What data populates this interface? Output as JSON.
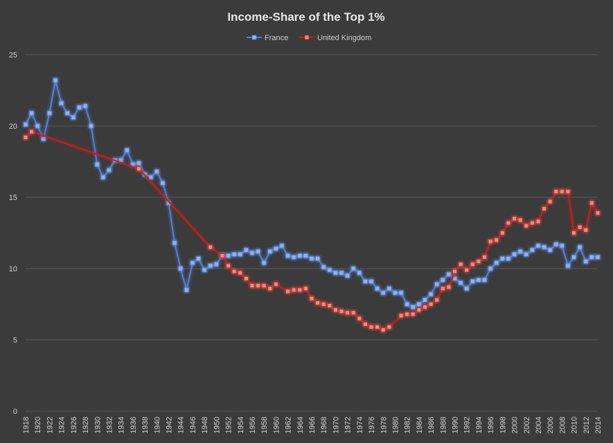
{
  "colors": {
    "background": "#3b3b3b",
    "grid": "#5a5a5a",
    "text": "#d0d0d0",
    "france": "#4f81d6",
    "france_marker": "#8fb2f0",
    "uk": "#c0201d",
    "uk_marker": "#f08a80"
  },
  "chart_data": {
    "type": "line",
    "title": "Income-Share of the Top 1%",
    "xlabel": "",
    "ylabel": "",
    "ylim": [
      0,
      25
    ],
    "yticks": [
      0,
      5,
      10,
      15,
      20,
      25
    ],
    "xlim": [
      1918,
      2014
    ],
    "xticks": [
      1918,
      1920,
      1922,
      1924,
      1926,
      1928,
      1930,
      1932,
      1934,
      1936,
      1938,
      1940,
      1942,
      1944,
      1946,
      1948,
      1950,
      1952,
      1954,
      1956,
      1958,
      1960,
      1962,
      1964,
      1966,
      1968,
      1970,
      1972,
      1974,
      1976,
      1978,
      1980,
      1982,
      1984,
      1986,
      1988,
      1990,
      1992,
      1994,
      1996,
      1998,
      2000,
      2002,
      2004,
      2006,
      2008,
      2010,
      2012,
      2014
    ],
    "grid": true,
    "legend_position": "top-center",
    "series": [
      {
        "name": "France",
        "color": "#4f81d6",
        "points": [
          [
            1918,
            20.1
          ],
          [
            1919,
            20.9
          ],
          [
            1920,
            20.0
          ],
          [
            1921,
            19.1
          ],
          [
            1922,
            20.9
          ],
          [
            1923,
            23.2
          ],
          [
            1924,
            21.6
          ],
          [
            1925,
            20.9
          ],
          [
            1926,
            20.6
          ],
          [
            1927,
            21.3
          ],
          [
            1928,
            21.4
          ],
          [
            1929,
            20.0
          ],
          [
            1930,
            17.3
          ],
          [
            1931,
            16.4
          ],
          [
            1932,
            16.9
          ],
          [
            1933,
            17.6
          ],
          [
            1934,
            17.6
          ],
          [
            1935,
            18.3
          ],
          [
            1936,
            17.3
          ],
          [
            1937,
            17.4
          ],
          [
            1938,
            16.6
          ],
          [
            1939,
            16.4
          ],
          [
            1940,
            16.8
          ],
          [
            1941,
            16.0
          ],
          [
            1942,
            14.6
          ],
          [
            1943,
            11.8
          ],
          [
            1944,
            10.0
          ],
          [
            1945,
            8.5
          ],
          [
            1946,
            10.4
          ],
          [
            1947,
            10.7
          ],
          [
            1948,
            9.9
          ],
          [
            1949,
            10.2
          ],
          [
            1950,
            10.3
          ],
          [
            1951,
            10.9
          ],
          [
            1952,
            10.9
          ],
          [
            1953,
            11.0
          ],
          [
            1954,
            11.0
          ],
          [
            1955,
            11.3
          ],
          [
            1956,
            11.1
          ],
          [
            1957,
            11.2
          ],
          [
            1958,
            10.4
          ],
          [
            1959,
            11.2
          ],
          [
            1960,
            11.4
          ],
          [
            1961,
            11.6
          ],
          [
            1962,
            10.9
          ],
          [
            1963,
            10.8
          ],
          [
            1964,
            10.9
          ],
          [
            1965,
            10.9
          ],
          [
            1966,
            10.7
          ],
          [
            1967,
            10.7
          ],
          [
            1968,
            10.1
          ],
          [
            1969,
            9.9
          ],
          [
            1970,
            9.7
          ],
          [
            1971,
            9.7
          ],
          [
            1972,
            9.5
          ],
          [
            1973,
            10.0
          ],
          [
            1974,
            9.7
          ],
          [
            1975,
            9.1
          ],
          [
            1976,
            9.1
          ],
          [
            1977,
            8.6
          ],
          [
            1978,
            8.3
          ],
          [
            1979,
            8.6
          ],
          [
            1980,
            8.3
          ],
          [
            1981,
            8.3
          ],
          [
            1982,
            7.5
          ],
          [
            1983,
            7.3
          ],
          [
            1984,
            7.5
          ],
          [
            1985,
            7.8
          ],
          [
            1986,
            8.2
          ],
          [
            1987,
            8.9
          ],
          [
            1988,
            9.2
          ],
          [
            1989,
            9.6
          ],
          [
            1990,
            9.3
          ],
          [
            1991,
            9.0
          ],
          [
            1992,
            8.6
          ],
          [
            1993,
            9.1
          ],
          [
            1994,
            9.2
          ],
          [
            1995,
            9.2
          ],
          [
            1996,
            10.0
          ],
          [
            1997,
            10.4
          ],
          [
            1998,
            10.7
          ],
          [
            1999,
            10.7
          ],
          [
            2000,
            11.0
          ],
          [
            2001,
            11.2
          ],
          [
            2002,
            11.0
          ],
          [
            2003,
            11.3
          ],
          [
            2004,
            11.6
          ],
          [
            2005,
            11.5
          ],
          [
            2006,
            11.3
          ],
          [
            2007,
            11.7
          ],
          [
            2008,
            11.6
          ],
          [
            2009,
            10.2
          ],
          [
            2010,
            10.8
          ],
          [
            2011,
            11.5
          ],
          [
            2012,
            10.5
          ],
          [
            2013,
            10.8
          ],
          [
            2014,
            10.8
          ]
        ]
      },
      {
        "name": "United Kingdom",
        "color": "#c0201d",
        "points": [
          [
            1918,
            19.2
          ],
          [
            1919,
            19.6
          ],
          [
            1937,
            17.0
          ],
          [
            1949,
            11.5
          ],
          [
            1951,
            10.9
          ],
          [
            1952,
            10.2
          ],
          [
            1953,
            9.8
          ],
          [
            1954,
            9.7
          ],
          [
            1955,
            9.3
          ],
          [
            1956,
            8.8
          ],
          [
            1957,
            8.8
          ],
          [
            1958,
            8.8
          ],
          [
            1959,
            8.6
          ],
          [
            1960,
            8.9
          ],
          [
            1962,
            8.4
          ],
          [
            1963,
            8.5
          ],
          [
            1964,
            8.5
          ],
          [
            1965,
            8.6
          ],
          [
            1966,
            7.9
          ],
          [
            1967,
            7.6
          ],
          [
            1968,
            7.5
          ],
          [
            1969,
            7.4
          ],
          [
            1970,
            7.1
          ],
          [
            1971,
            7.0
          ],
          [
            1972,
            6.9
          ],
          [
            1973,
            6.9
          ],
          [
            1974,
            6.5
          ],
          [
            1975,
            6.1
          ],
          [
            1976,
            5.9
          ],
          [
            1977,
            5.9
          ],
          [
            1978,
            5.7
          ],
          [
            1979,
            5.9
          ],
          [
            1981,
            6.7
          ],
          [
            1982,
            6.8
          ],
          [
            1983,
            6.8
          ],
          [
            1984,
            7.1
          ],
          [
            1985,
            7.3
          ],
          [
            1986,
            7.5
          ],
          [
            1987,
            7.8
          ],
          [
            1988,
            8.6
          ],
          [
            1989,
            8.7
          ],
          [
            1990,
            9.8
          ],
          [
            1991,
            10.3
          ],
          [
            1992,
            9.9
          ],
          [
            1993,
            10.3
          ],
          [
            1994,
            10.5
          ],
          [
            1995,
            10.8
          ],
          [
            1996,
            11.9
          ],
          [
            1997,
            12.0
          ],
          [
            1998,
            12.5
          ],
          [
            1999,
            13.2
          ],
          [
            2000,
            13.5
          ],
          [
            2001,
            13.4
          ],
          [
            2002,
            13.0
          ],
          [
            2003,
            13.2
          ],
          [
            2004,
            13.3
          ],
          [
            2005,
            14.2
          ],
          [
            2006,
            14.7
          ],
          [
            2007,
            15.4
          ],
          [
            2008,
            15.4
          ],
          [
            2009,
            15.4
          ],
          [
            2010,
            12.5
          ],
          [
            2011,
            12.9
          ],
          [
            2012,
            12.7
          ],
          [
            2013,
            14.6
          ],
          [
            2014,
            13.9
          ]
        ]
      }
    ]
  }
}
